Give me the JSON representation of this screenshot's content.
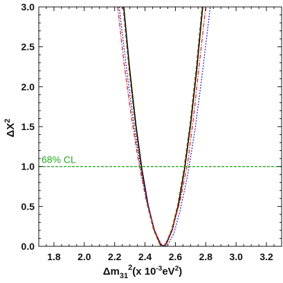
{
  "chart_data": {
    "type": "line",
    "xlim": [
      1.7,
      3.3
    ],
    "ylim": [
      0.0,
      3.0
    ],
    "xticks": [
      "1.8",
      "2.0",
      "2.2",
      "2.4",
      "2.6",
      "2.8",
      "3.0",
      "3.2"
    ],
    "yticks": [
      "0.0",
      "0.5",
      "1.0",
      "1.5",
      "2.0",
      "2.5",
      "3.0"
    ],
    "ylabel": {
      "base": "ΔX",
      "sup": "2"
    },
    "xlabel": {
      "p1": "Δm",
      "sub": "31",
      "sup": "2",
      "p2": "(x 10",
      "sup2": "-3",
      "p3": "eV",
      "sup3": "2",
      "p4": ")"
    },
    "grid": false,
    "cl_line": {
      "y": 1.0,
      "label": "68% CL",
      "color": "#22aa22"
    },
    "series": [
      {
        "color": "#000000",
        "dash": "solid",
        "width": 1.6,
        "x": [
          2.26,
          2.3,
          2.34,
          2.38,
          2.42,
          2.46,
          2.5,
          2.52,
          2.54,
          2.58,
          2.62,
          2.66,
          2.7,
          2.74,
          2.78
        ],
        "y": [
          3.0,
          2.2,
          1.52,
          0.96,
          0.52,
          0.21,
          0.03,
          0.0,
          0.03,
          0.21,
          0.52,
          0.96,
          1.52,
          2.2,
          3.0
        ]
      },
      {
        "color": "#8b6914",
        "dash": "dashed",
        "width": 1.3,
        "x": [
          2.255,
          2.295,
          2.335,
          2.375,
          2.415,
          2.455,
          2.495,
          2.515,
          2.535,
          2.575,
          2.615,
          2.655,
          2.695,
          2.735,
          2.775
        ],
        "y": [
          3.0,
          2.2,
          1.52,
          0.96,
          0.52,
          0.21,
          0.03,
          0.0,
          0.03,
          0.21,
          0.52,
          0.96,
          1.52,
          2.2,
          3.0
        ]
      },
      {
        "color": "#2222cc",
        "dash": "dotted",
        "width": 1.3,
        "x": [
          2.23,
          2.28,
          2.33,
          2.38,
          2.43,
          2.47,
          2.51,
          2.53,
          2.55,
          2.59,
          2.63,
          2.68,
          2.73,
          2.78,
          2.83
        ],
        "y": [
          3.0,
          2.2,
          1.47,
          0.88,
          0.44,
          0.16,
          0.02,
          0.0,
          0.02,
          0.16,
          0.44,
          0.88,
          1.47,
          2.2,
          3.0
        ]
      },
      {
        "color": "#dd2222",
        "dash": "dashdot",
        "width": 1.3,
        "x": [
          2.22,
          2.26,
          2.31,
          2.36,
          2.41,
          2.46,
          2.5,
          2.52,
          2.54,
          2.58,
          2.63,
          2.68,
          2.72,
          2.76,
          2.8
        ],
        "y": [
          3.0,
          2.32,
          1.62,
          1.03,
          0.56,
          0.22,
          0.04,
          0.0,
          0.04,
          0.22,
          0.56,
          1.03,
          1.62,
          2.32,
          3.0
        ]
      }
    ]
  }
}
